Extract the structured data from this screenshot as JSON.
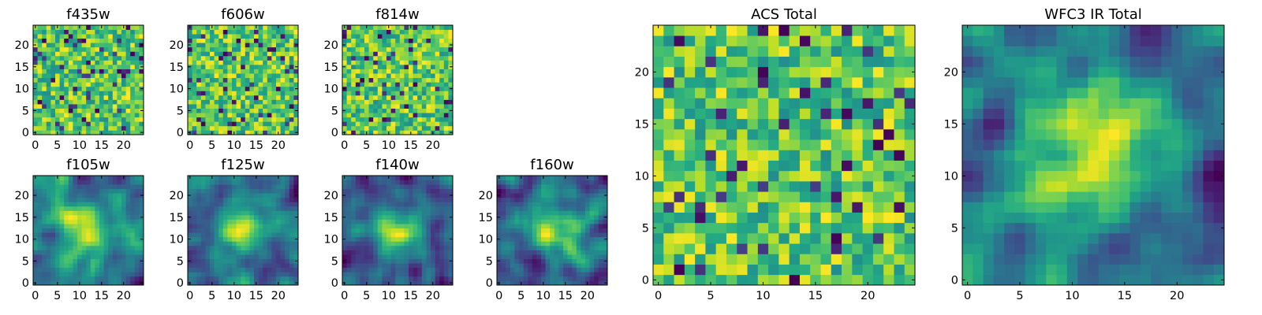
{
  "chart_data": [
    {
      "type": "heatmap",
      "title": "f435w",
      "x_ticks": [
        "0",
        "5",
        "10",
        "15",
        "20"
      ],
      "y_ticks": [
        "0",
        "5",
        "10",
        "15",
        "20"
      ],
      "xlim": [
        -0.5,
        24.5
      ],
      "ylim": [
        -0.5,
        24.5
      ],
      "grid_size": 25,
      "colormap": "viridis",
      "pattern": "noise",
      "seed": 11
    },
    {
      "type": "heatmap",
      "title": "f606w",
      "x_ticks": [
        "0",
        "5",
        "10",
        "15",
        "20"
      ],
      "y_ticks": [
        "0",
        "5",
        "10",
        "15",
        "20"
      ],
      "xlim": [
        -0.5,
        24.5
      ],
      "ylim": [
        -0.5,
        24.5
      ],
      "grid_size": 25,
      "colormap": "viridis",
      "pattern": "noise",
      "seed": 23
    },
    {
      "type": "heatmap",
      "title": "f814w",
      "x_ticks": [
        "0",
        "5",
        "10",
        "15",
        "20"
      ],
      "y_ticks": [
        "0",
        "5",
        "10",
        "15",
        "20"
      ],
      "xlim": [
        -0.5,
        24.5
      ],
      "ylim": [
        -0.5,
        24.5
      ],
      "grid_size": 25,
      "colormap": "viridis",
      "pattern": "noise",
      "seed": 37
    },
    {
      "type": "heatmap",
      "title": "f105w",
      "x_ticks": [
        "0",
        "5",
        "10",
        "15",
        "20"
      ],
      "y_ticks": [
        "0",
        "5",
        "10",
        "15",
        "20"
      ],
      "xlim": [
        -0.5,
        24.5
      ],
      "ylim": [
        -0.5,
        24.5
      ],
      "grid_size": 25,
      "colormap": "viridis",
      "pattern": "smooth",
      "seed": 41
    },
    {
      "type": "heatmap",
      "title": "f125w",
      "x_ticks": [
        "0",
        "5",
        "10",
        "15",
        "20"
      ],
      "y_ticks": [
        "0",
        "5",
        "10",
        "15",
        "20"
      ],
      "xlim": [
        -0.5,
        24.5
      ],
      "ylim": [
        -0.5,
        24.5
      ],
      "grid_size": 25,
      "colormap": "viridis",
      "pattern": "smooth",
      "seed": 53
    },
    {
      "type": "heatmap",
      "title": "f140w",
      "x_ticks": [
        "0",
        "5",
        "10",
        "15",
        "20"
      ],
      "y_ticks": [
        "0",
        "5",
        "10",
        "15",
        "20"
      ],
      "xlim": [
        -0.5,
        24.5
      ],
      "ylim": [
        -0.5,
        24.5
      ],
      "grid_size": 25,
      "colormap": "viridis",
      "pattern": "smooth",
      "seed": 67
    },
    {
      "type": "heatmap",
      "title": "f160w",
      "x_ticks": [
        "0",
        "5",
        "10",
        "15",
        "20"
      ],
      "y_ticks": [
        "0",
        "5",
        "10",
        "15",
        "20"
      ],
      "xlim": [
        -0.5,
        24.5
      ],
      "ylim": [
        -0.5,
        24.5
      ],
      "grid_size": 25,
      "colormap": "viridis",
      "pattern": "smooth",
      "seed": 79
    },
    {
      "type": "heatmap",
      "title": "ACS Total",
      "x_ticks": [
        "0",
        "5",
        "10",
        "15",
        "20"
      ],
      "y_ticks": [
        "0",
        "5",
        "10",
        "15",
        "20"
      ],
      "xlim": [
        -0.5,
        24.5
      ],
      "ylim": [
        -0.5,
        24.5
      ],
      "grid_size": 25,
      "colormap": "viridis",
      "pattern": "noise",
      "seed": 97
    },
    {
      "type": "heatmap",
      "title": "WFC3 IR Total",
      "x_ticks": [
        "0",
        "5",
        "10",
        "15",
        "20"
      ],
      "y_ticks": [
        "0",
        "5",
        "10",
        "15",
        "20"
      ],
      "xlim": [
        -0.5,
        24.5
      ],
      "ylim": [
        -0.5,
        24.5
      ],
      "grid_size": 25,
      "colormap": "viridis",
      "pattern": "smooth",
      "seed": 113
    }
  ]
}
